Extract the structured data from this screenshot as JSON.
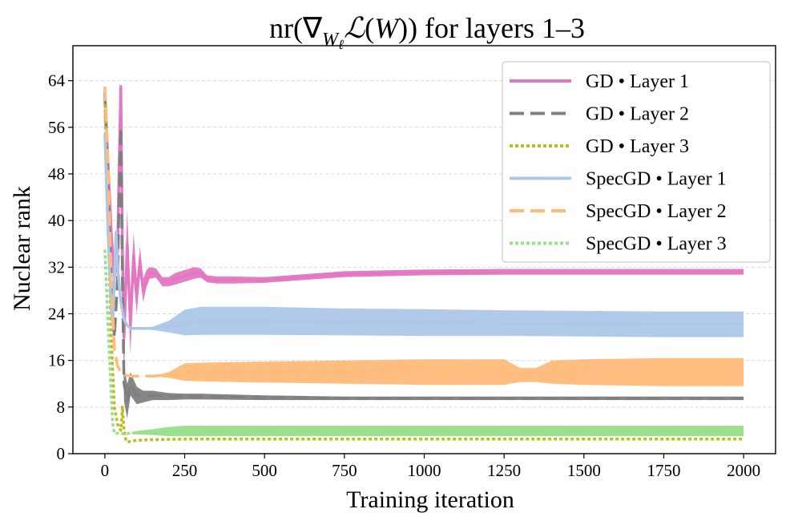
{
  "chart_data": {
    "type": "line",
    "title": "nr(∇W_ℓ ℒ(W)) for layers 1–3",
    "title_parts": {
      "prefix": "nr(∇",
      "subscript": "W",
      "subsubscript": "ℓ",
      "script_l": "ℒ",
      "w_arg": "W",
      "suffix": ")) for layers 1–3"
    },
    "xlabel": "Training iteration",
    "ylabel": "Nuclear rank",
    "xlim": [
      -100,
      2100
    ],
    "ylim": [
      0,
      70
    ],
    "xticks": [
      0,
      250,
      500,
      750,
      1000,
      1250,
      1500,
      1750,
      2000
    ],
    "xtick_labels": [
      "0",
      "250",
      "500",
      "750",
      "1000",
      "1250",
      "1500",
      "1750",
      "2000"
    ],
    "yticks": [
      0,
      8,
      16,
      24,
      32,
      40,
      48,
      56,
      64
    ],
    "ytick_labels": [
      "0",
      "8",
      "16",
      "24",
      "32",
      "40",
      "48",
      "56",
      "64"
    ],
    "grid": "horizontal-dashed",
    "legend_position": "top-right",
    "series": [
      {
        "name": "GD • Layer 1",
        "color": "#e377c2",
        "dash": "solid",
        "x": [
          0,
          10,
          20,
          30,
          40,
          45,
          50,
          55,
          60,
          65,
          70,
          80,
          90,
          100,
          110,
          120,
          130,
          140,
          160,
          180,
          200,
          220,
          250,
          280,
          300,
          320,
          350,
          400,
          500,
          600,
          750,
          1000,
          1250,
          1500,
          1750,
          2000
        ],
        "y": [
          62,
          50,
          38,
          30,
          35,
          50,
          63,
          35,
          20,
          28,
          36,
          22,
          34,
          27,
          33,
          28,
          30,
          31,
          31,
          29.5,
          29.5,
          30,
          30.5,
          31,
          31,
          30,
          29.8,
          29.8,
          29.8,
          30.2,
          30.8,
          31.1,
          31.2,
          31.2,
          31.2,
          31.2
        ],
        "band": [
          0,
          0,
          0,
          0,
          0,
          0,
          0,
          0,
          6,
          6,
          6,
          5,
          4,
          3,
          2.5,
          2,
          1.5,
          1,
          0.8,
          0.8,
          0.8,
          1,
          1,
          1,
          0.8,
          0.6,
          0.6,
          0.6,
          0.5,
          0.5,
          0.5,
          0.5,
          0.5,
          0.5,
          0.5,
          0.5
        ]
      },
      {
        "name": "GD • Layer 2",
        "color": "#7f7f7f",
        "dash": "dashed",
        "x": [
          0,
          10,
          20,
          30,
          40,
          45,
          50,
          55,
          60,
          70,
          80,
          100,
          120,
          150,
          200,
          250,
          300,
          500,
          750,
          1000,
          1250,
          1500,
          1750,
          2000
        ],
        "y": [
          62,
          45,
          30,
          20,
          30,
          45,
          56,
          30,
          12,
          9,
          12,
          10,
          9.8,
          10,
          9.8,
          9.8,
          9.8,
          9.6,
          9.5,
          9.5,
          9.5,
          9.5,
          9.5,
          9.5
        ],
        "band": [
          0,
          0,
          0,
          0,
          0,
          0,
          0,
          0,
          3,
          3,
          2,
          1.5,
          1,
          0.8,
          0.6,
          0.5,
          0.5,
          0.4,
          0.3,
          0.3,
          0.3,
          0.3,
          0.3,
          0.3
        ]
      },
      {
        "name": "GD • Layer 3",
        "color": "#bcbd22",
        "dash": "dotted",
        "x": [
          0,
          10,
          20,
          30,
          40,
          50,
          55,
          60,
          65,
          70,
          100,
          150,
          250,
          500,
          1000,
          1500,
          2000
        ],
        "y": [
          60,
          40,
          20,
          8,
          5,
          4,
          8,
          4,
          2.5,
          2,
          2.3,
          2.4,
          2.5,
          2.5,
          2.5,
          2.5,
          2.5
        ],
        "band": [
          0,
          0,
          0,
          0,
          0,
          0,
          0,
          0,
          0,
          0,
          0,
          0,
          0,
          0,
          0,
          0,
          0
        ]
      },
      {
        "name": "SpecGD • Layer 1",
        "color": "#aec7e8",
        "dash": "solid",
        "x": [
          0,
          10,
          20,
          25,
          30,
          35,
          40,
          50,
          60,
          70,
          80,
          100,
          150,
          200,
          250,
          300,
          400,
          500,
          750,
          1000,
          1250,
          1500,
          1750,
          2000
        ],
        "y": [
          55,
          38,
          25,
          22,
          30,
          38,
          32,
          26,
          23,
          22,
          21.5,
          21.5,
          21.5,
          21.8,
          22.5,
          22.8,
          22.8,
          22.8,
          22.6,
          22.5,
          22.4,
          22.3,
          22.2,
          22.2
        ],
        "band": [
          0,
          0,
          0,
          0,
          0,
          0,
          0,
          0,
          0,
          0,
          0,
          0,
          0.3,
          1,
          2.2,
          2.4,
          2.4,
          2.4,
          2.3,
          2.3,
          2.2,
          2.2,
          2.2,
          2.2
        ]
      },
      {
        "name": "SpecGD • Layer 2",
        "color": "#ffbb78",
        "dash": "dashed",
        "x": [
          0,
          10,
          20,
          30,
          40,
          50,
          60,
          80,
          100,
          150,
          200,
          250,
          300,
          400,
          500,
          750,
          1000,
          1250,
          1300,
          1350,
          1400,
          1500,
          1750,
          2000
        ],
        "y": [
          63,
          50,
          30,
          18,
          15,
          14,
          13.5,
          13.3,
          13.3,
          13.3,
          13.5,
          14,
          14,
          14,
          14,
          14,
          14,
          14,
          13.5,
          13.5,
          14,
          14,
          14,
          14
        ],
        "band": [
          0,
          0,
          0,
          0,
          0,
          0,
          0,
          0,
          0,
          0,
          0.5,
          1.5,
          1.6,
          1.7,
          1.8,
          2,
          2.2,
          2.2,
          1.2,
          1.2,
          2,
          2.2,
          2.4,
          2.4
        ]
      },
      {
        "name": "SpecGD • Layer 3",
        "color": "#98df8a",
        "dash": "dotted",
        "x": [
          0,
          10,
          20,
          25,
          30,
          40,
          50,
          60,
          80,
          100,
          150,
          200,
          250,
          500,
          1000,
          1500,
          2000
        ],
        "y": [
          35,
          22,
          10,
          5,
          3.5,
          3.5,
          3.5,
          3.4,
          3.5,
          3.6,
          3.7,
          3.8,
          3.9,
          3.9,
          3.9,
          3.9,
          3.9
        ],
        "band": [
          0,
          0,
          0,
          0,
          0,
          0,
          0,
          0,
          0,
          0.3,
          0.5,
          0.8,
          0.9,
          0.9,
          0.9,
          0.9,
          0.9
        ]
      }
    ]
  }
}
